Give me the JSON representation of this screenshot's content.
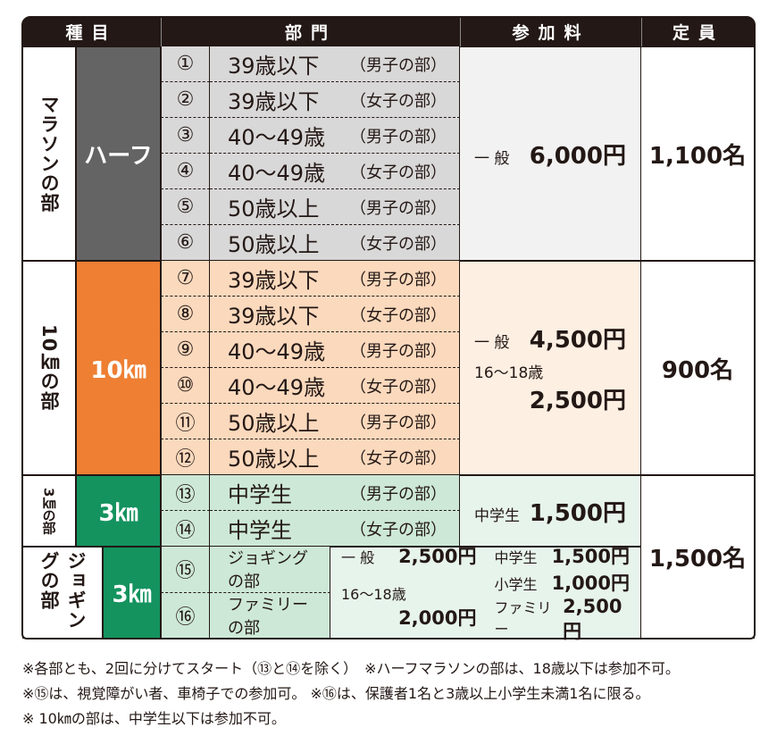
{
  "header": [
    "種目",
    "部門",
    "参加料",
    "定員"
  ],
  "sections": [
    {
      "name": "マラソンの部",
      "distance": "ハーフ",
      "divisions": [
        {
          "no": "①",
          "label": "39歳以下",
          "group": "（男子の部）"
        },
        {
          "no": "②",
          "label": "39歳以下",
          "group": "（女子の部）"
        },
        {
          "no": "③",
          "label": "40～49歳",
          "group": "（男子の部）"
        },
        {
          "no": "④",
          "label": "40～49歳",
          "group": "（女子の部）"
        },
        {
          "no": "⑤",
          "label": "50歳以上",
          "group": "（男子の部）"
        },
        {
          "no": "⑥",
          "label": "50歳以上",
          "group": "（女子の部）"
        }
      ],
      "fees": [
        {
          "label": "一 般",
          "amount": "6,000円"
        }
      ],
      "capacity": "1,100名"
    },
    {
      "name": "10㎞の部",
      "distance": "10㎞",
      "divisions": [
        {
          "no": "⑦",
          "label": "39歳以下",
          "group": "（男子の部）"
        },
        {
          "no": "⑧",
          "label": "39歳以下",
          "group": "（女子の部）"
        },
        {
          "no": "⑨",
          "label": "40～49歳",
          "group": "（男子の部）"
        },
        {
          "no": "⑩",
          "label": "40～49歳",
          "group": "（女子の部）"
        },
        {
          "no": "⑪",
          "label": "50歳以上",
          "group": "（男子の部）"
        },
        {
          "no": "⑫",
          "label": "50歳以上",
          "group": "（女子の部）"
        }
      ],
      "fees": [
        {
          "label": "一 般",
          "amount": "4,500円"
        },
        {
          "label": "16～18歳",
          "amount": "2,500円"
        }
      ],
      "capacity": "900名"
    },
    {
      "name": "3㎞の部",
      "distance": "3㎞",
      "divisions": [
        {
          "no": "⑬",
          "label": "中学生",
          "group": "（男子の部）"
        },
        {
          "no": "⑭",
          "label": "中学生",
          "group": "（女子の部）"
        }
      ],
      "fees": [
        {
          "label": "中学生",
          "amount": "1,500円"
        }
      ],
      "capacity": "1,500名"
    },
    {
      "name": "ジョギングの部",
      "distance": "3㎞",
      "divisions": [
        {
          "no": "⑮",
          "label": "ジョギングの部"
        },
        {
          "no": "⑯",
          "label": "ファミリーの部"
        }
      ],
      "fees": [
        {
          "label": "一 般",
          "amount": "2,500円"
        },
        {
          "label": "16～18歳",
          "amount": "2,000円"
        },
        {
          "label": "中学生",
          "amount": "1,500円"
        },
        {
          "label": "小学生",
          "amount": "1,000円"
        },
        {
          "label": "ファミリー",
          "amount": "2,500円"
        }
      ]
    }
  ],
  "notes": [
    "※各部とも、2回に分けてスタート（⑬と⑭を除く）　※ハーフマラソンの部は、18歳以下は参加不可。",
    "※⑮は、視覚障がい者、車椅子での参加可。 ※⑯は、保護者1名と3歳以上小学生未満1名に限る。",
    "※ 10㎞の部は、中学生以下は参加不可。"
  ]
}
